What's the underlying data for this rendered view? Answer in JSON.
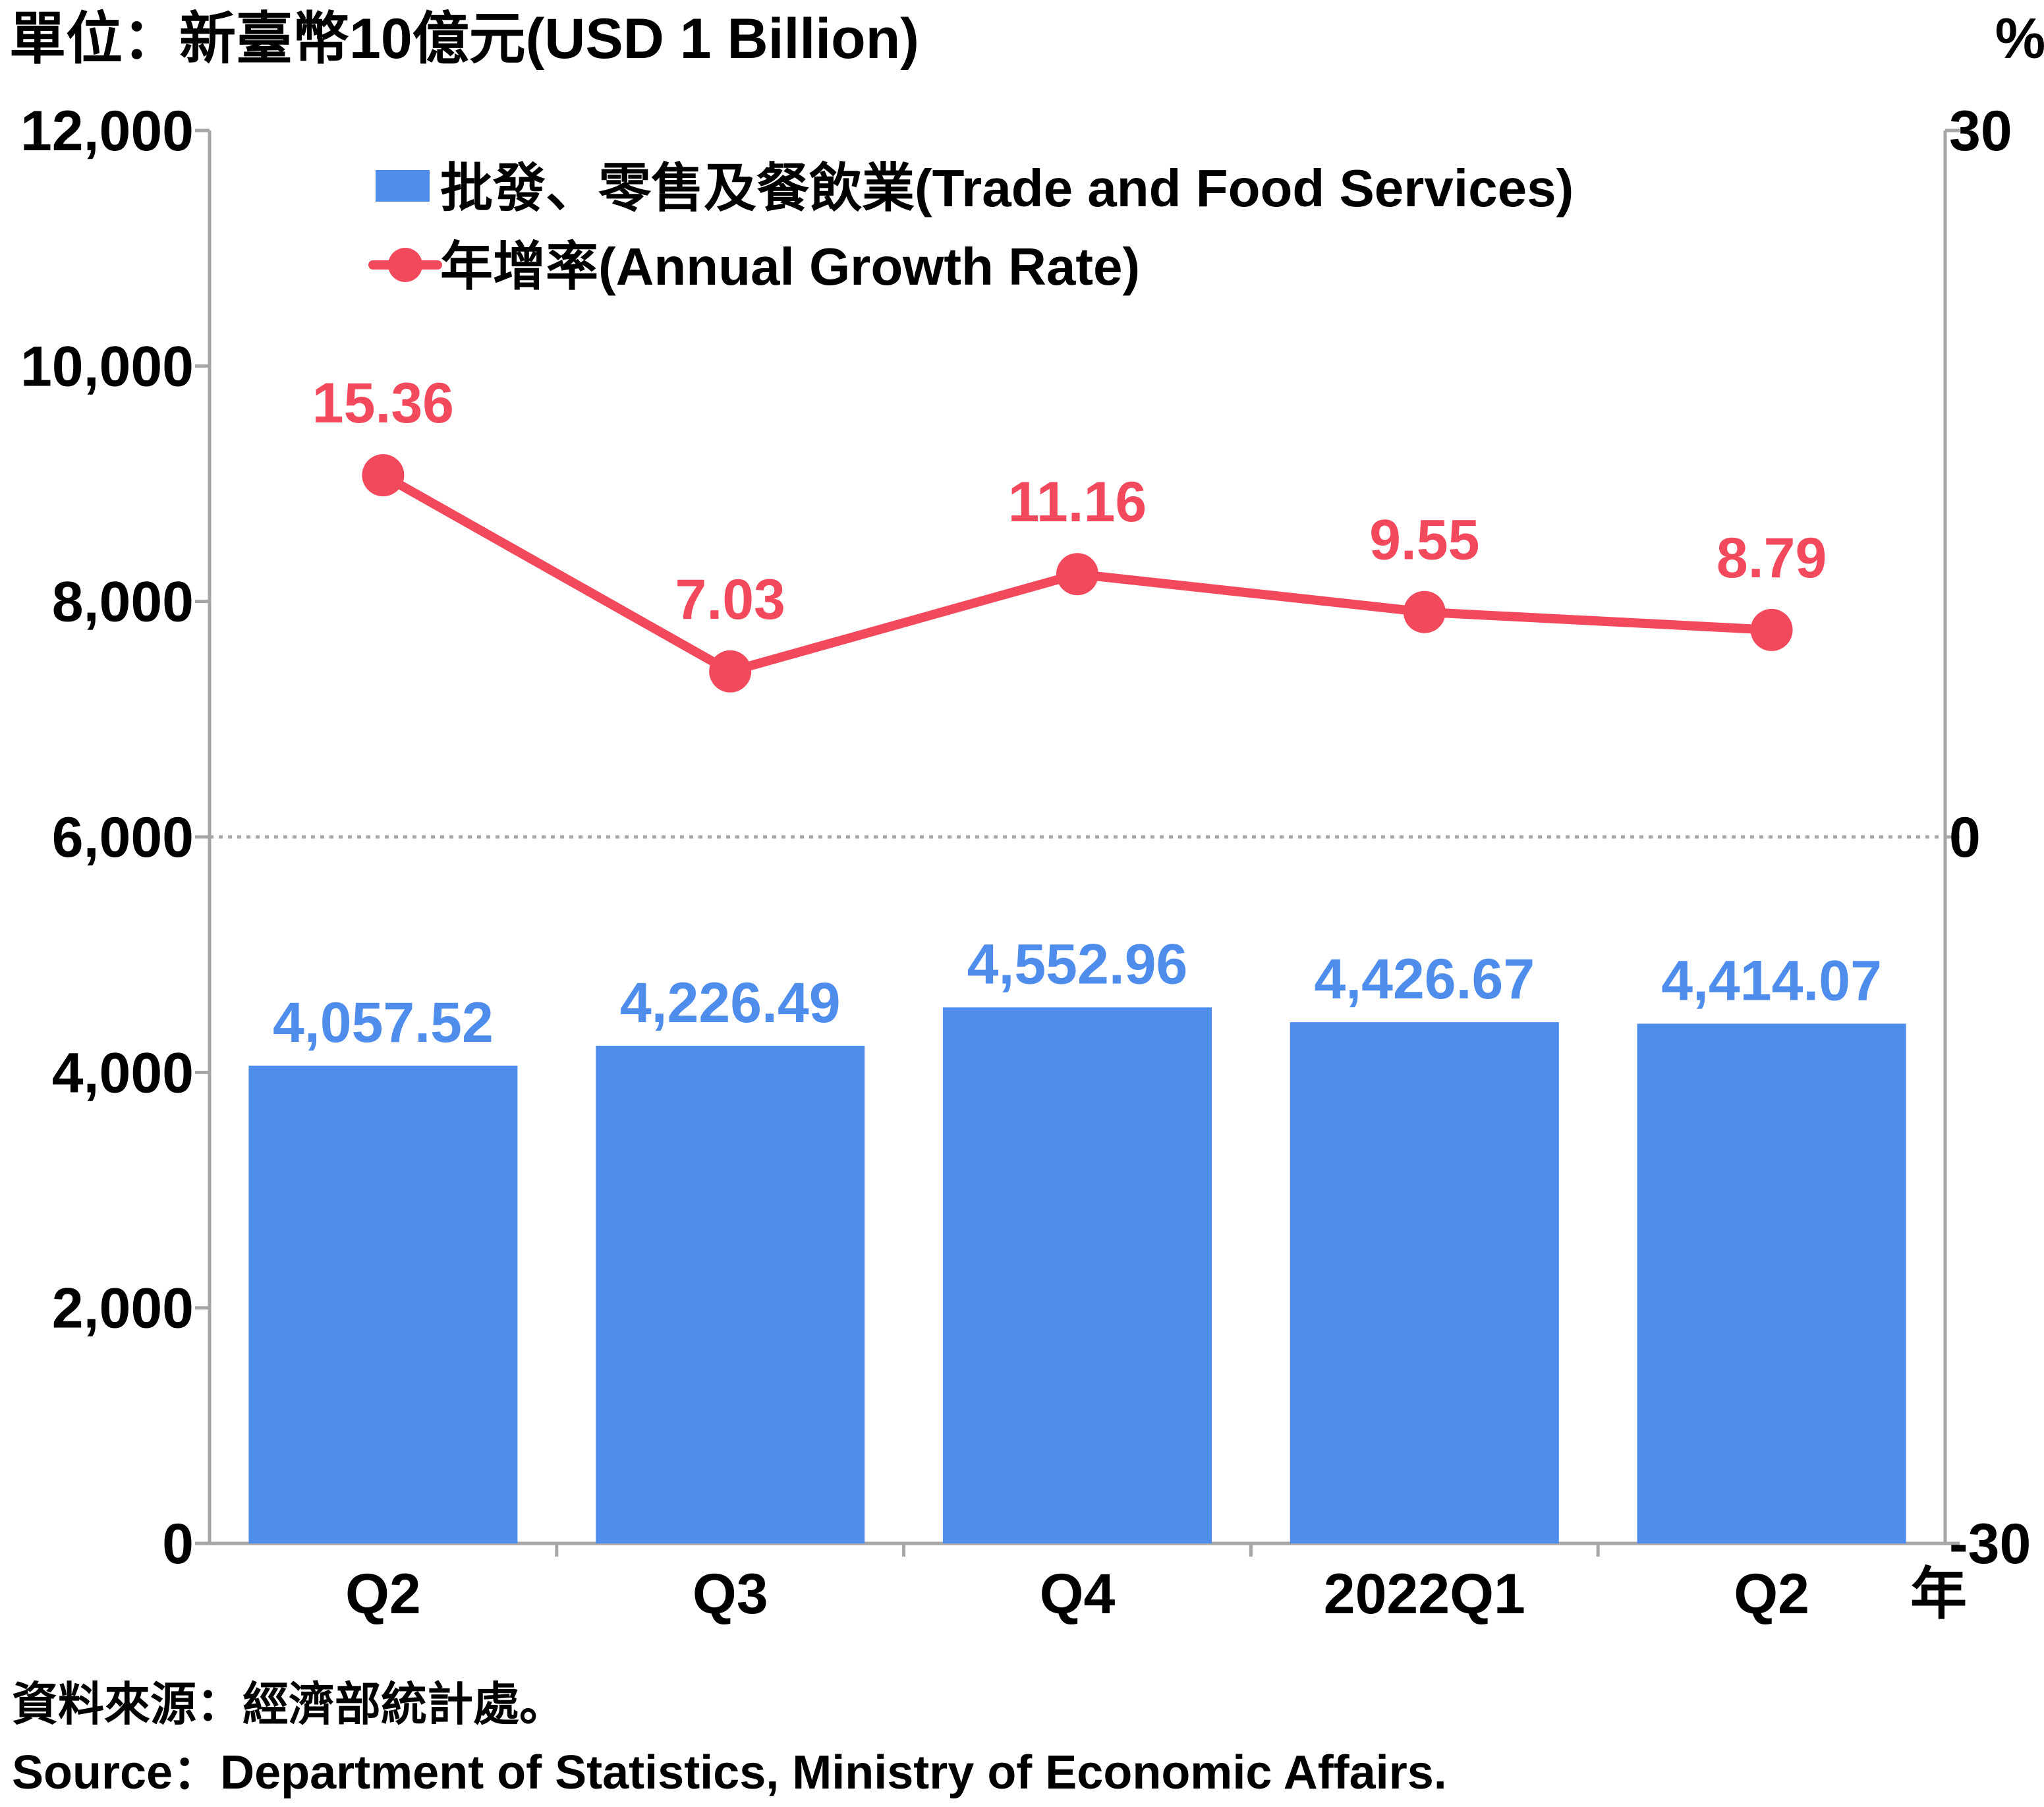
{
  "header": {
    "unit_left": "單位：新臺幣10億元(USD 1 Billion)",
    "unit_right": "%",
    "year_suffix": "年"
  },
  "footer": {
    "source_zh": "資料來源：經濟部統計處。",
    "source_en": "Source：Department of Statistics, Ministry of Economic Affairs."
  },
  "colors": {
    "bar": "#4f8ded",
    "line": "#f24a5c",
    "axis": "#a6a6a6",
    "text": "#000000"
  },
  "chart_data": {
    "type": "bar",
    "categories": [
      "Q2",
      "Q3",
      "Q4",
      "2022Q1",
      "Q2"
    ],
    "series": [
      {
        "name": "批發、零售及餐飲業(Trade and Food Services)",
        "type": "bar",
        "axis": "left",
        "values": [
          4057.52,
          4226.49,
          4552.96,
          4426.67,
          4414.07
        ],
        "labels": [
          "4,057.52",
          "4,226.49",
          "4,552.96",
          "4,426.67",
          "4,414.07"
        ]
      },
      {
        "name": "年增率(Annual Growth Rate)",
        "type": "line",
        "axis": "right",
        "values": [
          15.36,
          7.03,
          11.16,
          9.55,
          8.79
        ],
        "labels": [
          "15.36",
          "7.03",
          "11.16",
          "9.55",
          "8.79"
        ]
      }
    ],
    "y_left": {
      "range": [
        0,
        12000
      ],
      "ticks": [
        0,
        2000,
        4000,
        6000,
        8000,
        10000,
        12000
      ],
      "tick_labels": [
        "0",
        "2,000",
        "4,000",
        "6,000",
        "8,000",
        "10,000",
        "12,000"
      ]
    },
    "y_right": {
      "range": [
        -30,
        30
      ],
      "ticks": [
        -30,
        0,
        30
      ],
      "tick_labels": [
        "-30",
        "0",
        "30"
      ]
    },
    "zero_reference_line": "dotted",
    "legend_position": "top-left",
    "grid": false
  }
}
